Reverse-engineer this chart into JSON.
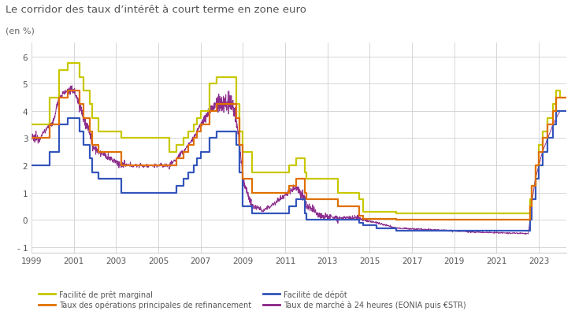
{
  "title": "Le corridor des taux d’intérêt à court terme en zone euro",
  "subtitle": "(en %)",
  "ylim": [
    -1.2,
    6.5
  ],
  "yticks": [
    -1,
    0,
    1,
    2,
    3,
    4,
    5,
    6
  ],
  "xlim": [
    1999.0,
    2024.3
  ],
  "xticks": [
    1999,
    2001,
    2003,
    2005,
    2007,
    2009,
    2011,
    2013,
    2015,
    2017,
    2019,
    2021,
    2023
  ],
  "background_color": "#ffffff",
  "grid_color": "#d0d0d0",
  "colors": {
    "marginal_lending": "#c8c800",
    "main_refi": "#e07000",
    "deposit": "#3355bb",
    "market_rate": "#882288"
  },
  "legend_labels": [
    "Facilité de prêt marginal",
    "Taux des opérations principales de refinancement",
    "Facilité de dépôt",
    "Taux de marché à 24 heures (EONIA puis €STR)"
  ],
  "marginal_lending_dates": [
    1999.0,
    1999.37,
    1999.87,
    2000.29,
    2000.7,
    2001.25,
    2001.45,
    2001.75,
    2001.87,
    2002.17,
    2003.25,
    2003.5,
    2005.5,
    2005.87,
    2006.17,
    2006.42,
    2006.67,
    2006.83,
    2007.0,
    2007.42,
    2007.75,
    2008.67,
    2008.83,
    2009.0,
    2009.42,
    2010.0,
    2011.17,
    2011.5,
    2011.92,
    2012.0,
    2012.75,
    2013.5,
    2014.5,
    2014.67,
    2015.33,
    2016.25,
    2022.58,
    2022.67,
    2022.83,
    2023.0,
    2023.17,
    2023.42,
    2023.67,
    2023.83,
    2024.0,
    2024.3
  ],
  "marginal_lending_values": [
    3.5,
    3.5,
    4.5,
    5.5,
    5.75,
    5.25,
    4.75,
    4.25,
    3.75,
    3.25,
    3.0,
    3.0,
    2.5,
    2.75,
    3.0,
    3.25,
    3.5,
    3.75,
    4.0,
    5.0,
    5.25,
    4.25,
    3.25,
    2.5,
    1.75,
    1.75,
    2.0,
    2.25,
    1.75,
    1.5,
    1.5,
    1.0,
    0.75,
    0.3,
    0.3,
    0.25,
    0.75,
    1.25,
    2.0,
    2.75,
    3.25,
    3.75,
    4.25,
    4.75,
    4.5,
    4.5
  ],
  "main_refi_dates": [
    1999.0,
    1999.37,
    1999.87,
    2000.29,
    2000.7,
    2001.25,
    2001.45,
    2001.75,
    2001.87,
    2002.17,
    2003.25,
    2003.5,
    2005.5,
    2005.87,
    2006.17,
    2006.42,
    2006.67,
    2006.83,
    2007.0,
    2007.42,
    2007.75,
    2008.67,
    2008.83,
    2009.0,
    2009.42,
    2010.0,
    2011.17,
    2011.5,
    2011.92,
    2012.0,
    2012.75,
    2013.5,
    2014.5,
    2014.67,
    2015.33,
    2016.25,
    2022.58,
    2022.67,
    2022.83,
    2023.0,
    2023.17,
    2023.42,
    2023.67,
    2023.83,
    2024.0,
    2024.3
  ],
  "main_refi_values": [
    3.0,
    3.0,
    3.5,
    4.5,
    4.75,
    4.25,
    3.75,
    3.25,
    2.75,
    2.5,
    2.0,
    2.0,
    2.0,
    2.25,
    2.5,
    2.75,
    3.0,
    3.25,
    3.5,
    4.0,
    4.25,
    3.75,
    2.75,
    1.5,
    1.0,
    1.0,
    1.25,
    1.5,
    1.0,
    0.75,
    0.75,
    0.5,
    0.15,
    0.05,
    0.05,
    0.0,
    0.5,
    1.25,
    2.0,
    2.5,
    3.0,
    3.5,
    4.0,
    4.5,
    4.5,
    4.5
  ],
  "deposit_dates": [
    1999.0,
    1999.37,
    1999.87,
    2000.29,
    2000.7,
    2001.25,
    2001.45,
    2001.75,
    2001.87,
    2002.17,
    2003.25,
    2003.5,
    2005.5,
    2005.87,
    2006.17,
    2006.42,
    2006.67,
    2006.83,
    2007.0,
    2007.42,
    2007.75,
    2008.67,
    2008.83,
    2009.0,
    2009.42,
    2010.0,
    2011.17,
    2011.5,
    2011.92,
    2012.0,
    2012.75,
    2013.5,
    2014.5,
    2014.67,
    2015.33,
    2016.25,
    2022.58,
    2022.67,
    2022.83,
    2023.0,
    2023.17,
    2023.42,
    2023.67,
    2023.83,
    2024.0,
    2024.3
  ],
  "deposit_values": [
    2.0,
    2.0,
    2.5,
    3.5,
    3.75,
    3.25,
    2.75,
    2.25,
    1.75,
    1.5,
    1.0,
    1.0,
    1.0,
    1.25,
    1.5,
    1.75,
    2.0,
    2.25,
    2.5,
    3.0,
    3.25,
    2.75,
    1.75,
    0.5,
    0.25,
    0.25,
    0.5,
    0.75,
    0.25,
    0.0,
    0.0,
    0.0,
    -0.1,
    -0.2,
    -0.3,
    -0.4,
    0.0,
    0.75,
    1.5,
    2.0,
    2.5,
    3.0,
    3.5,
    4.0,
    4.0,
    4.0
  ]
}
